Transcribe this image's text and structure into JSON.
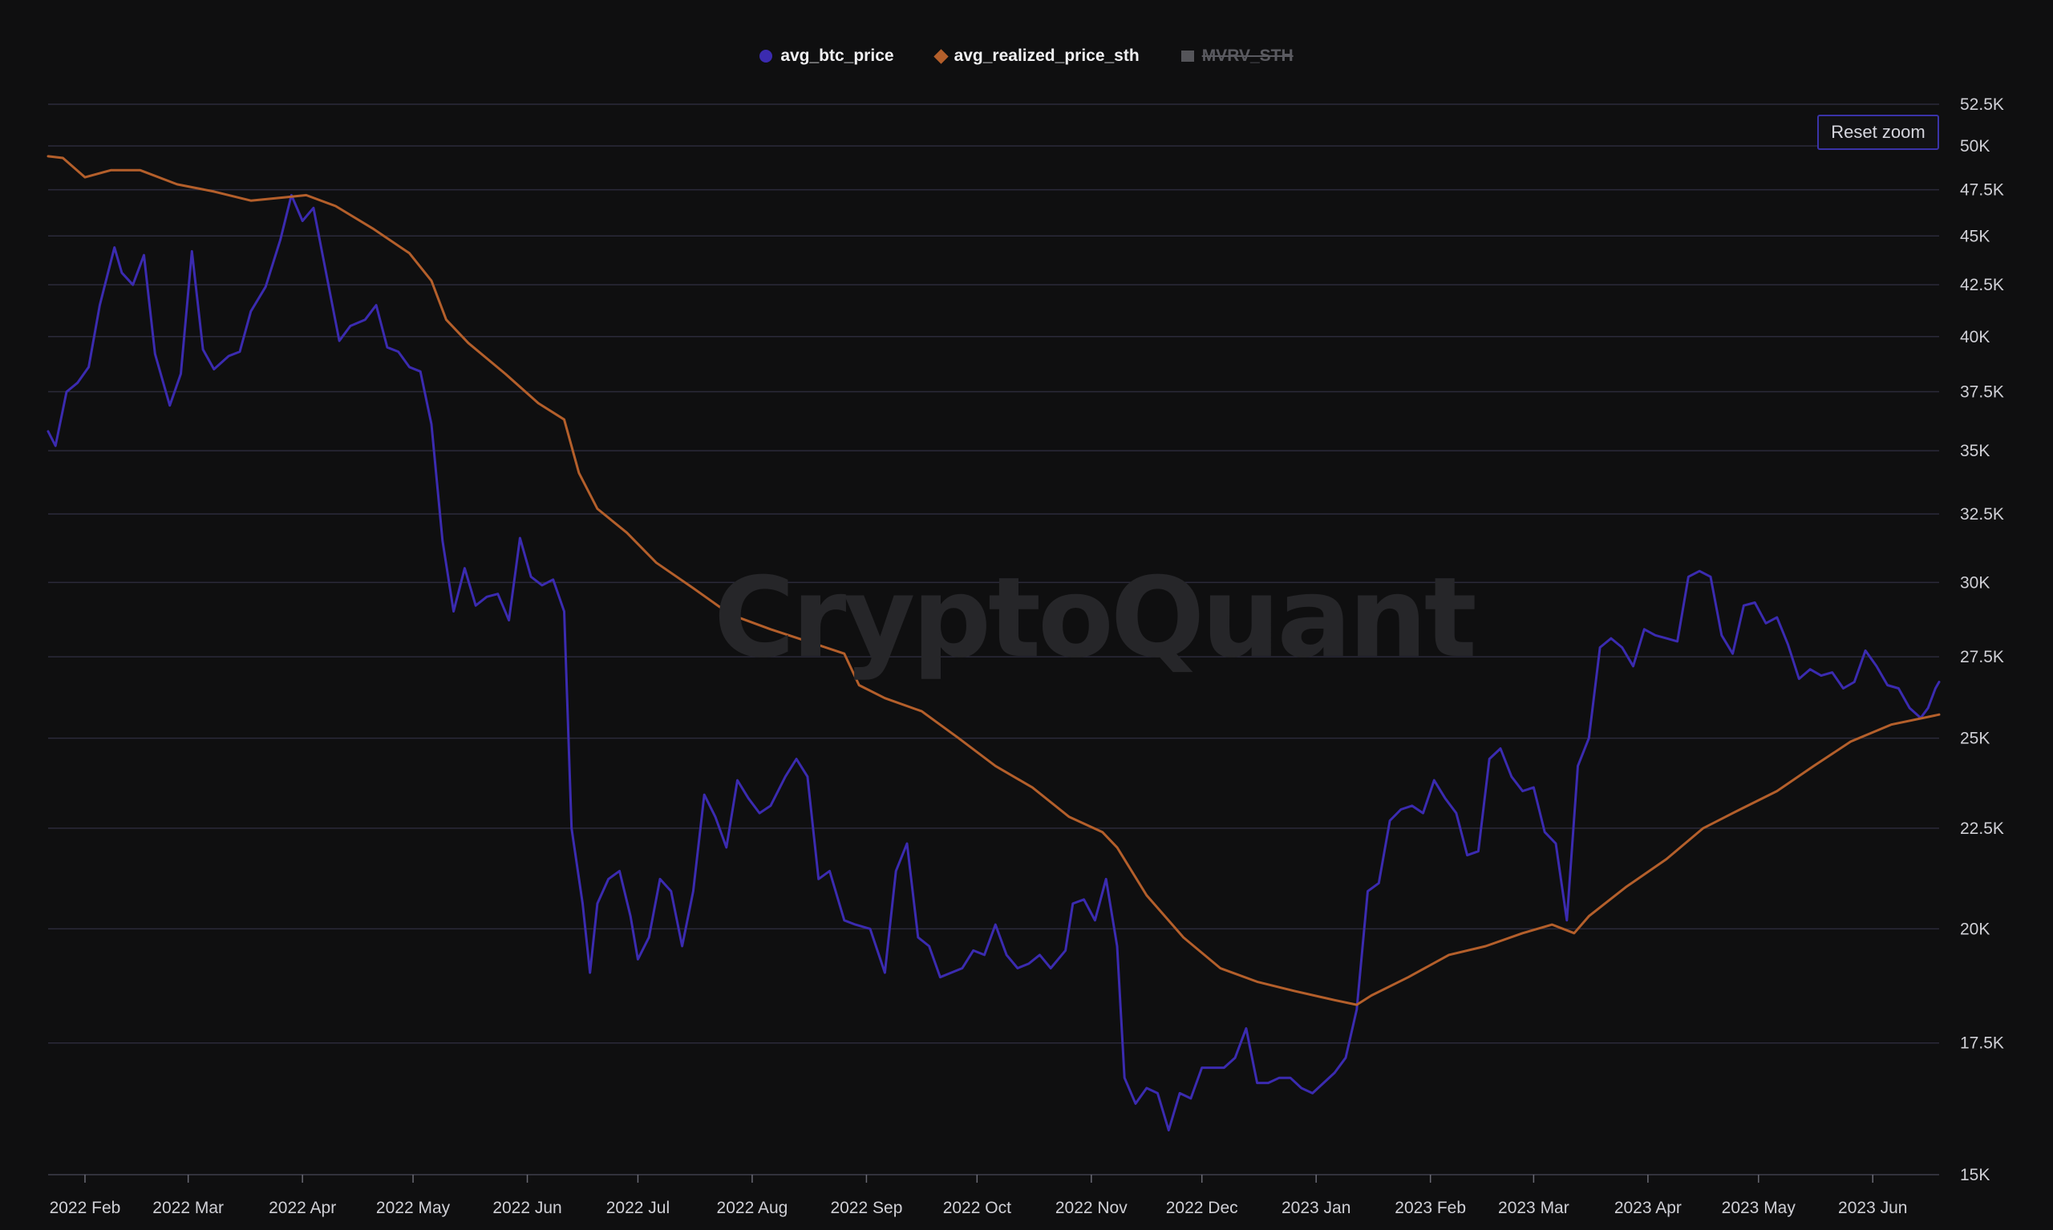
{
  "legend": [
    {
      "label": "avg_btc_price",
      "color": "#3b2bb0",
      "marker": "circle",
      "visible": true
    },
    {
      "label": "avg_realized_price_sth",
      "color": "#b45f2b",
      "marker": "diamond",
      "visible": true
    },
    {
      "label": "MVRV_STH",
      "color": "#55555a",
      "marker": "square",
      "visible": false
    }
  ],
  "reset_zoom_label": "Reset zoom",
  "watermark": "CryptoQuant",
  "chart_data": {
    "type": "line",
    "x_axis": {
      "tick_labels": [
        "2022 Feb",
        "2022 Mar",
        "2022 Apr",
        "2022 May",
        "2022 Jun",
        "2022 Jul",
        "2022 Aug",
        "2022 Sep",
        "2022 Oct",
        "2022 Nov",
        "2022 Dec",
        "2023 Jan",
        "2023 Feb",
        "2023 Mar",
        "2023 Apr",
        "2023 May",
        "2023 Jun"
      ],
      "tick_dates": [
        "2022-02-01",
        "2022-03-01",
        "2022-04-01",
        "2022-05-01",
        "2022-06-01",
        "2022-07-01",
        "2022-08-01",
        "2022-09-01",
        "2022-10-01",
        "2022-11-01",
        "2022-12-01",
        "2023-01-01",
        "2023-02-01",
        "2023-03-01",
        "2023-04-01",
        "2023-05-01",
        "2023-06-01"
      ],
      "range": [
        "2022-01-22",
        "2023-06-19"
      ]
    },
    "y_axis": {
      "scale": "log",
      "position": "right",
      "range": [
        15000,
        52500
      ],
      "tick_labels": [
        "15K",
        "17.5K",
        "20K",
        "22.5K",
        "25K",
        "27.5K",
        "30K",
        "32.5K",
        "35K",
        "37.5K",
        "40K",
        "42.5K",
        "45K",
        "47.5K",
        "50K",
        "52.5K"
      ],
      "tick_values": [
        15000,
        17500,
        20000,
        22500,
        25000,
        27500,
        30000,
        32500,
        35000,
        37500,
        40000,
        42500,
        45000,
        47500,
        50000,
        52500
      ],
      "grid": true
    },
    "series": [
      {
        "name": "avg_btc_price",
        "color": "#3b2bb0",
        "points": [
          [
            "2022-01-22",
            35800
          ],
          [
            "2022-01-24",
            35200
          ],
          [
            "2022-01-27",
            37500
          ],
          [
            "2022-01-30",
            37900
          ],
          [
            "2022-02-02",
            38600
          ],
          [
            "2022-02-05",
            41500
          ],
          [
            "2022-02-09",
            44400
          ],
          [
            "2022-02-11",
            43100
          ],
          [
            "2022-02-14",
            42500
          ],
          [
            "2022-02-17",
            44000
          ],
          [
            "2022-02-20",
            39200
          ],
          [
            "2022-02-24",
            36900
          ],
          [
            "2022-02-27",
            38300
          ],
          [
            "2022-03-02",
            44200
          ],
          [
            "2022-03-05",
            39400
          ],
          [
            "2022-03-08",
            38500
          ],
          [
            "2022-03-12",
            39100
          ],
          [
            "2022-03-15",
            39300
          ],
          [
            "2022-03-18",
            41200
          ],
          [
            "2022-03-22",
            42400
          ],
          [
            "2022-03-26",
            44800
          ],
          [
            "2022-03-29",
            47200
          ],
          [
            "2022-04-01",
            45800
          ],
          [
            "2022-04-04",
            46500
          ],
          [
            "2022-04-07",
            43500
          ],
          [
            "2022-04-11",
            39800
          ],
          [
            "2022-04-14",
            40500
          ],
          [
            "2022-04-18",
            40800
          ],
          [
            "2022-04-21",
            41500
          ],
          [
            "2022-04-24",
            39500
          ],
          [
            "2022-04-27",
            39300
          ],
          [
            "2022-04-30",
            38600
          ],
          [
            "2022-05-03",
            38400
          ],
          [
            "2022-05-06",
            36100
          ],
          [
            "2022-05-09",
            31500
          ],
          [
            "2022-05-12",
            29000
          ],
          [
            "2022-05-15",
            30500
          ],
          [
            "2022-05-18",
            29200
          ],
          [
            "2022-05-21",
            29500
          ],
          [
            "2022-05-24",
            29600
          ],
          [
            "2022-05-27",
            28700
          ],
          [
            "2022-05-30",
            31600
          ],
          [
            "2022-06-02",
            30200
          ],
          [
            "2022-06-05",
            29900
          ],
          [
            "2022-06-08",
            30100
          ],
          [
            "2022-06-11",
            29000
          ],
          [
            "2022-06-13",
            22500
          ],
          [
            "2022-06-16",
            20600
          ],
          [
            "2022-06-18",
            19000
          ],
          [
            "2022-06-20",
            20600
          ],
          [
            "2022-06-23",
            21200
          ],
          [
            "2022-06-26",
            21400
          ],
          [
            "2022-06-29",
            20300
          ],
          [
            "2022-07-01",
            19300
          ],
          [
            "2022-07-04",
            19800
          ],
          [
            "2022-07-07",
            21200
          ],
          [
            "2022-07-10",
            20900
          ],
          [
            "2022-07-13",
            19600
          ],
          [
            "2022-07-16",
            20900
          ],
          [
            "2022-07-19",
            23400
          ],
          [
            "2022-07-22",
            22800
          ],
          [
            "2022-07-25",
            22000
          ],
          [
            "2022-07-28",
            23800
          ],
          [
            "2022-07-31",
            23300
          ],
          [
            "2022-08-03",
            22900
          ],
          [
            "2022-08-06",
            23100
          ],
          [
            "2022-08-10",
            23900
          ],
          [
            "2022-08-13",
            24400
          ],
          [
            "2022-08-16",
            23900
          ],
          [
            "2022-08-19",
            21200
          ],
          [
            "2022-08-22",
            21400
          ],
          [
            "2022-08-26",
            20200
          ],
          [
            "2022-08-29",
            20100
          ],
          [
            "2022-09-02",
            20000
          ],
          [
            "2022-09-06",
            19000
          ],
          [
            "2022-09-09",
            21400
          ],
          [
            "2022-09-12",
            22100
          ],
          [
            "2022-09-15",
            19800
          ],
          [
            "2022-09-18",
            19600
          ],
          [
            "2022-09-21",
            18900
          ],
          [
            "2022-09-24",
            19000
          ],
          [
            "2022-09-27",
            19100
          ],
          [
            "2022-09-30",
            19500
          ],
          [
            "2022-10-03",
            19400
          ],
          [
            "2022-10-06",
            20100
          ],
          [
            "2022-10-09",
            19400
          ],
          [
            "2022-10-12",
            19100
          ],
          [
            "2022-10-15",
            19200
          ],
          [
            "2022-10-18",
            19400
          ],
          [
            "2022-10-21",
            19100
          ],
          [
            "2022-10-25",
            19500
          ],
          [
            "2022-10-27",
            20600
          ],
          [
            "2022-10-30",
            20700
          ],
          [
            "2022-11-02",
            20200
          ],
          [
            "2022-11-05",
            21200
          ],
          [
            "2022-11-08",
            19600
          ],
          [
            "2022-11-10",
            16800
          ],
          [
            "2022-11-13",
            16300
          ],
          [
            "2022-11-16",
            16600
          ],
          [
            "2022-11-19",
            16500
          ],
          [
            "2022-11-22",
            15800
          ],
          [
            "2022-11-25",
            16500
          ],
          [
            "2022-11-28",
            16400
          ],
          [
            "2022-12-01",
            17000
          ],
          [
            "2022-12-04",
            17000
          ],
          [
            "2022-12-07",
            17000
          ],
          [
            "2022-12-10",
            17200
          ],
          [
            "2022-12-13",
            17800
          ],
          [
            "2022-12-16",
            16700
          ],
          [
            "2022-12-19",
            16700
          ],
          [
            "2022-12-22",
            16800
          ],
          [
            "2022-12-25",
            16800
          ],
          [
            "2022-12-28",
            16600
          ],
          [
            "2022-12-31",
            16500
          ],
          [
            "2023-01-03",
            16700
          ],
          [
            "2023-01-06",
            16900
          ],
          [
            "2023-01-09",
            17200
          ],
          [
            "2023-01-12",
            18200
          ],
          [
            "2023-01-15",
            20900
          ],
          [
            "2023-01-18",
            21100
          ],
          [
            "2023-01-21",
            22700
          ],
          [
            "2023-01-24",
            23000
          ],
          [
            "2023-01-27",
            23100
          ],
          [
            "2023-01-30",
            22900
          ],
          [
            "2023-02-02",
            23800
          ],
          [
            "2023-02-05",
            23300
          ],
          [
            "2023-02-08",
            22900
          ],
          [
            "2023-02-11",
            21800
          ],
          [
            "2023-02-14",
            21900
          ],
          [
            "2023-02-17",
            24400
          ],
          [
            "2023-02-20",
            24700
          ],
          [
            "2023-02-23",
            23900
          ],
          [
            "2023-02-26",
            23500
          ],
          [
            "2023-03-01",
            23600
          ],
          [
            "2023-03-04",
            22400
          ],
          [
            "2023-03-07",
            22100
          ],
          [
            "2023-03-10",
            20200
          ],
          [
            "2023-03-13",
            24200
          ],
          [
            "2023-03-16",
            25000
          ],
          [
            "2023-03-19",
            27800
          ],
          [
            "2023-03-22",
            28100
          ],
          [
            "2023-03-25",
            27800
          ],
          [
            "2023-03-28",
            27200
          ],
          [
            "2023-03-31",
            28400
          ],
          [
            "2023-04-03",
            28200
          ],
          [
            "2023-04-06",
            28100
          ],
          [
            "2023-04-09",
            28000
          ],
          [
            "2023-04-12",
            30200
          ],
          [
            "2023-04-15",
            30400
          ],
          [
            "2023-04-18",
            30200
          ],
          [
            "2023-04-21",
            28200
          ],
          [
            "2023-04-24",
            27600
          ],
          [
            "2023-04-27",
            29200
          ],
          [
            "2023-04-30",
            29300
          ],
          [
            "2023-05-03",
            28600
          ],
          [
            "2023-05-06",
            28800
          ],
          [
            "2023-05-09",
            27900
          ],
          [
            "2023-05-12",
            26800
          ],
          [
            "2023-05-15",
            27100
          ],
          [
            "2023-05-18",
            26900
          ],
          [
            "2023-05-21",
            27000
          ],
          [
            "2023-05-24",
            26500
          ],
          [
            "2023-05-27",
            26700
          ],
          [
            "2023-05-30",
            27700
          ],
          [
            "2023-06-02",
            27200
          ],
          [
            "2023-06-05",
            26600
          ],
          [
            "2023-06-08",
            26500
          ],
          [
            "2023-06-11",
            25900
          ],
          [
            "2023-06-14",
            25600
          ],
          [
            "2023-06-16",
            25900
          ],
          [
            "2023-06-18",
            26500
          ],
          [
            "2023-06-19",
            26700
          ]
        ]
      },
      {
        "name": "avg_realized_price_sth",
        "color": "#b45f2b",
        "points": [
          [
            "2022-01-22",
            49400
          ],
          [
            "2022-01-26",
            49300
          ],
          [
            "2022-02-01",
            48200
          ],
          [
            "2022-02-08",
            48600
          ],
          [
            "2022-02-16",
            48600
          ],
          [
            "2022-02-26",
            47800
          ],
          [
            "2022-03-08",
            47400
          ],
          [
            "2022-03-18",
            46900
          ],
          [
            "2022-03-28",
            47100
          ],
          [
            "2022-04-02",
            47200
          ],
          [
            "2022-04-10",
            46600
          ],
          [
            "2022-04-20",
            45400
          ],
          [
            "2022-04-30",
            44100
          ],
          [
            "2022-05-06",
            42700
          ],
          [
            "2022-05-10",
            40800
          ],
          [
            "2022-05-16",
            39700
          ],
          [
            "2022-05-26",
            38300
          ],
          [
            "2022-06-04",
            37000
          ],
          [
            "2022-06-11",
            36300
          ],
          [
            "2022-06-15",
            34100
          ],
          [
            "2022-06-20",
            32700
          ],
          [
            "2022-06-28",
            31800
          ],
          [
            "2022-07-06",
            30700
          ],
          [
            "2022-07-16",
            29800
          ],
          [
            "2022-07-26",
            28900
          ],
          [
            "2022-08-06",
            28400
          ],
          [
            "2022-08-16",
            28000
          ],
          [
            "2022-08-26",
            27600
          ],
          [
            "2022-08-30",
            26600
          ],
          [
            "2022-09-06",
            26200
          ],
          [
            "2022-09-16",
            25800
          ],
          [
            "2022-09-26",
            25000
          ],
          [
            "2022-10-06",
            24200
          ],
          [
            "2022-10-16",
            23600
          ],
          [
            "2022-10-26",
            22800
          ],
          [
            "2022-11-04",
            22400
          ],
          [
            "2022-11-08",
            22000
          ],
          [
            "2022-11-16",
            20800
          ],
          [
            "2022-11-26",
            19800
          ],
          [
            "2022-12-06",
            19100
          ],
          [
            "2022-12-16",
            18800
          ],
          [
            "2022-12-26",
            18600
          ],
          [
            "2023-01-06",
            18400
          ],
          [
            "2023-01-12",
            18300
          ],
          [
            "2023-01-16",
            18500
          ],
          [
            "2023-01-26",
            18900
          ],
          [
            "2023-02-06",
            19400
          ],
          [
            "2023-02-16",
            19600
          ],
          [
            "2023-02-26",
            19900
          ],
          [
            "2023-03-06",
            20100
          ],
          [
            "2023-03-12",
            19900
          ],
          [
            "2023-03-16",
            20300
          ],
          [
            "2023-03-26",
            21000
          ],
          [
            "2023-04-06",
            21700
          ],
          [
            "2023-04-16",
            22500
          ],
          [
            "2023-04-26",
            23000
          ],
          [
            "2023-05-06",
            23500
          ],
          [
            "2023-05-16",
            24200
          ],
          [
            "2023-05-26",
            24900
          ],
          [
            "2023-06-06",
            25400
          ],
          [
            "2023-06-19",
            25700
          ]
        ]
      }
    ]
  }
}
